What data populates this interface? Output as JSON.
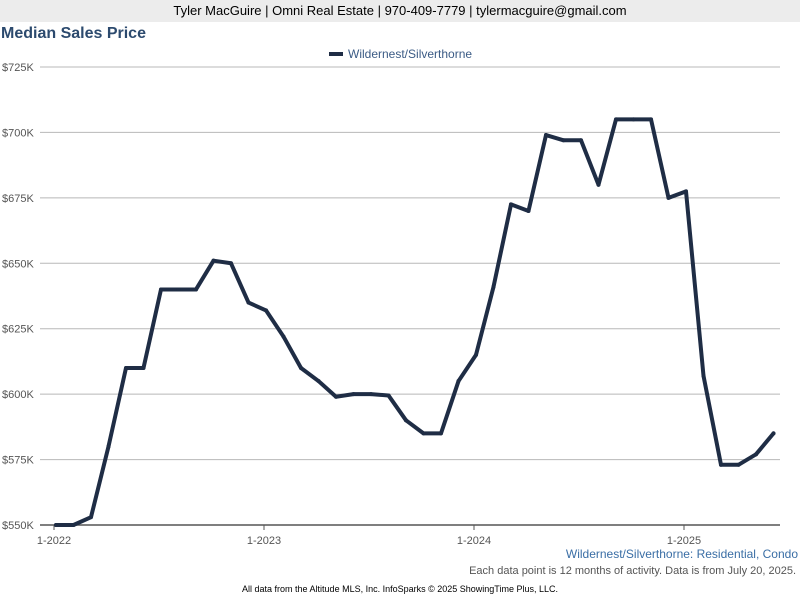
{
  "header": {
    "contact": "Tyler MacGuire | Omni Real Estate | 970-409-7779 | tylermacguire@gmail.com"
  },
  "chart_data": {
    "type": "line",
    "title": "Median Sales Price",
    "subtitle": "Wildernest/Silverthorne: Residential, Condo",
    "note": "Each data point is 12 months of activity. Data is from July 20, 2025.",
    "xlabel": "",
    "ylabel": "",
    "ylim": [
      550000,
      725000
    ],
    "yticks": [
      {
        "value": 725000,
        "label": "$725K"
      },
      {
        "value": 700000,
        "label": "$700K"
      },
      {
        "value": 675000,
        "label": "$675K"
      },
      {
        "value": 650000,
        "label": "$650K"
      },
      {
        "value": 625000,
        "label": "$625K"
      },
      {
        "value": 600000,
        "label": "$600K"
      },
      {
        "value": 575000,
        "label": "$575K"
      },
      {
        "value": 550000,
        "label": "$550K"
      }
    ],
    "xticks": [
      {
        "index": 0,
        "label": "1-2022"
      },
      {
        "index": 12,
        "label": "1-2023"
      },
      {
        "index": 24,
        "label": "1-2024"
      },
      {
        "index": 36,
        "label": "1-2025"
      }
    ],
    "grid": true,
    "legend_position": "top-center",
    "color": "#1f2d45",
    "series": [
      {
        "name": "Wildernest/Silverthorne",
        "x": [
          "2022-01",
          "2022-02",
          "2022-03",
          "2022-04",
          "2022-05",
          "2022-06",
          "2022-07",
          "2022-08",
          "2022-09",
          "2022-10",
          "2022-11",
          "2022-12",
          "2023-01",
          "2023-02",
          "2023-03",
          "2023-04",
          "2023-05",
          "2023-06",
          "2023-07",
          "2023-08",
          "2023-09",
          "2023-10",
          "2023-11",
          "2023-12",
          "2024-01",
          "2024-02",
          "2024-03",
          "2024-04",
          "2024-05",
          "2024-06",
          "2024-07",
          "2024-08",
          "2024-09",
          "2024-10",
          "2024-11",
          "2024-12",
          "2025-01",
          "2025-02",
          "2025-03",
          "2025-04",
          "2025-05",
          "2025-06"
        ],
        "values": [
          550000,
          550000,
          553000,
          580000,
          610000,
          610000,
          640000,
          640000,
          640000,
          651000,
          650000,
          635000,
          632000,
          622000,
          610000,
          605000,
          599000,
          600000,
          600000,
          599500,
          590000,
          585000,
          585000,
          605000,
          615000,
          641000,
          672500,
          670000,
          699000,
          697000,
          697000,
          680000,
          705000,
          705000,
          705000,
          675000,
          677500,
          607000,
          573000,
          573000,
          577000,
          585000
        ]
      }
    ]
  },
  "footer": {
    "source": "All data from the Altitude MLS, Inc. InfoSparks © 2025 ShowingTime Plus, LLC."
  }
}
